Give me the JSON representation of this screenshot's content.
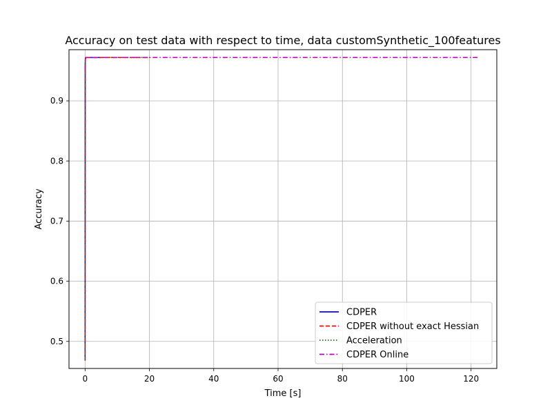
{
  "chart_data": {
    "type": "line",
    "title": "Accuracy on test data with respect to time, data customSynthetic_100features",
    "xlabel": "Time [s]",
    "ylabel": "Accuracy",
    "xlim": [
      -5,
      128
    ],
    "ylim": [
      0.455,
      0.985
    ],
    "xticks": [
      0,
      20,
      40,
      60,
      80,
      100,
      120
    ],
    "yticks": [
      0.5,
      0.6,
      0.7,
      0.8,
      0.9
    ],
    "xtick_labels": [
      "0",
      "20",
      "40",
      "60",
      "80",
      "100",
      "120"
    ],
    "ytick_labels": [
      "0.5",
      "0.6",
      "0.7",
      "0.8",
      "0.9"
    ],
    "grid": true,
    "legend_position": "lower-right",
    "series": [
      {
        "name": "CDPER",
        "color": "#0000ff",
        "style": "solid",
        "x": [
          0,
          0.05,
          0.1,
          0.2,
          0.4,
          1.0,
          5.0
        ],
        "y": [
          0.468,
          0.96,
          0.971,
          0.972,
          0.972,
          0.972,
          0.972
        ]
      },
      {
        "name": "CDPER without exact Hessian",
        "color": "#ff0000",
        "style": "dashed",
        "x": [
          0,
          0.05,
          0.1,
          0.2,
          0.4,
          1.0,
          5.0,
          20.0
        ],
        "y": [
          0.468,
          0.955,
          0.97,
          0.972,
          0.972,
          0.972,
          0.972,
          0.972
        ]
      },
      {
        "name": "Acceleration",
        "color": "#008000",
        "style": "dotted",
        "x": [
          0,
          0.05,
          0.1,
          0.2,
          0.4,
          1.0,
          5.0,
          20.0
        ],
        "y": [
          0.468,
          0.96,
          0.971,
          0.972,
          0.972,
          0.972,
          0.972,
          0.972
        ]
      },
      {
        "name": "CDPER Online",
        "color": "#bf00bf",
        "style": "dashdot",
        "x": [
          0,
          0.1,
          0.3,
          1.0,
          10.0,
          60.0,
          122.0
        ],
        "y": [
          0.95,
          0.97,
          0.972,
          0.972,
          0.972,
          0.972,
          0.972
        ]
      }
    ]
  }
}
